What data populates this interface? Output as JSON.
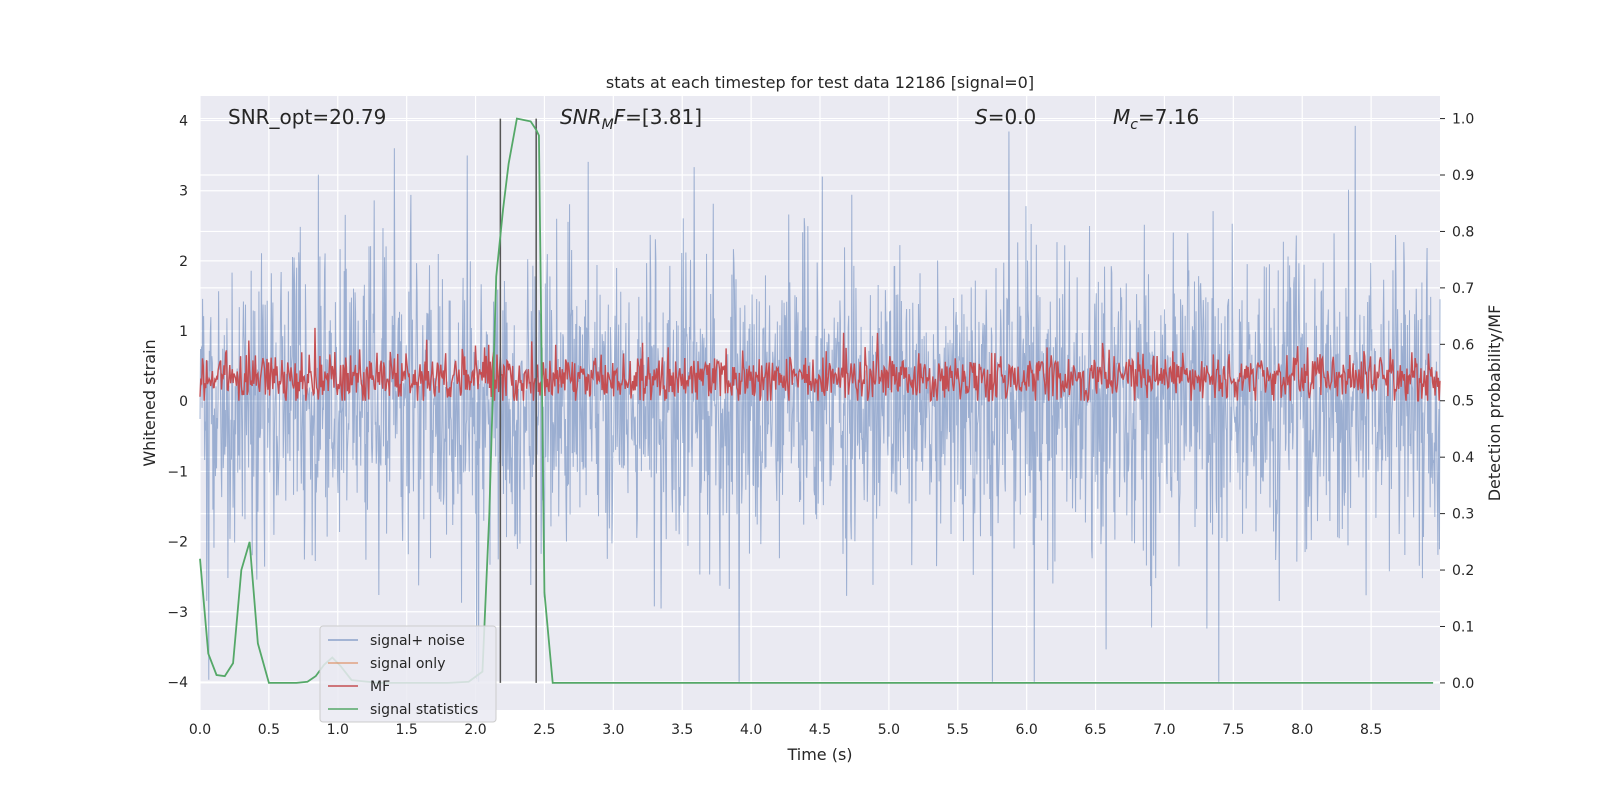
{
  "chart_data": {
    "type": "line",
    "title": "stats at each timestep for test data 12186 [signal=0]",
    "xlabel": "Time (s)",
    "ylabel": "Whitened strain",
    "ylabel_right": "Detection probability/MF",
    "xlim": [
      0,
      9.0
    ],
    "ylim_left": [
      -4.4,
      4.35
    ],
    "ylim_right": [
      -0.048,
      1.04
    ],
    "xticks": [
      "0.0",
      "0.5",
      "1.0",
      "1.5",
      "2.0",
      "2.5",
      "3.0",
      "3.5",
      "4.0",
      "4.5",
      "5.0",
      "5.5",
      "6.0",
      "6.5",
      "7.0",
      "7.5",
      "8.0",
      "8.5"
    ],
    "yticks_left": [
      "4",
      "3",
      "2",
      "1",
      "0",
      "−1",
      "−2",
      "−3",
      "−4"
    ],
    "yticks_right": [
      "1.0",
      "0.9",
      "0.8",
      "0.7",
      "0.6",
      "0.5",
      "0.4",
      "0.3",
      "0.2",
      "0.1",
      "0.0"
    ],
    "grid": true,
    "legend_position": "lower-left",
    "annotations": [
      {
        "id": "snr_opt",
        "text": "SNR_opt=20.79"
      },
      {
        "id": "snr_mf",
        "text": "=[3.81]",
        "math_base": "SNR",
        "math_sub": "M",
        "math_tail": "F"
      },
      {
        "id": "s_val",
        "text": "=0.0",
        "math_base": "S"
      },
      {
        "id": "mc_val",
        "text": "=7.16",
        "math_base": "M",
        "math_sub": "c"
      }
    ],
    "vertical_lines_x": [
      2.18,
      2.44
    ],
    "series": [
      {
        "name": "signal+ noise",
        "color": "#4c72b0",
        "axis": "left",
        "description_envelope": {
          "x_range": [
            0,
            9.0
          ],
          "typical_abs_peak": 2.5,
          "max": 3.95,
          "min": -4.0
        }
      },
      {
        "name": "signal only",
        "color": "#dd8452",
        "axis": "left",
        "values": []
      },
      {
        "name": "MF",
        "color": "#c44e52",
        "axis": "right",
        "description_envelope": {
          "x_range": [
            0,
            9.0
          ],
          "center": 0.54,
          "low": 0.5,
          "high": 0.63
        }
      },
      {
        "name": "signal statistics",
        "color": "#55a868",
        "axis": "right",
        "x": [
          0.0,
          0.06,
          0.12,
          0.18,
          0.24,
          0.3,
          0.36,
          0.42,
          0.5,
          0.6,
          0.7,
          0.78,
          0.84,
          0.9,
          0.96,
          1.02,
          1.1,
          1.3,
          1.6,
          1.8,
          1.95,
          2.05,
          2.1,
          2.15,
          2.2,
          2.24,
          2.3,
          2.4,
          2.44,
          2.46,
          2.5,
          2.56,
          2.6,
          3.0,
          4.0,
          5.0,
          6.0,
          7.0,
          8.0,
          8.95
        ],
        "values": [
          0.22,
          0.052,
          0.014,
          0.012,
          0.035,
          0.2,
          0.25,
          0.07,
          0.0,
          0.0,
          0.0,
          0.002,
          0.012,
          0.032,
          0.045,
          0.03,
          0.005,
          0.0,
          0.0,
          0.0,
          0.002,
          0.02,
          0.3,
          0.72,
          0.84,
          0.92,
          1.0,
          0.995,
          0.98,
          0.97,
          0.16,
          0.0,
          0.0,
          0.0,
          0.0,
          0.0,
          0.0,
          0.0,
          0.0,
          0.0
        ]
      }
    ]
  }
}
